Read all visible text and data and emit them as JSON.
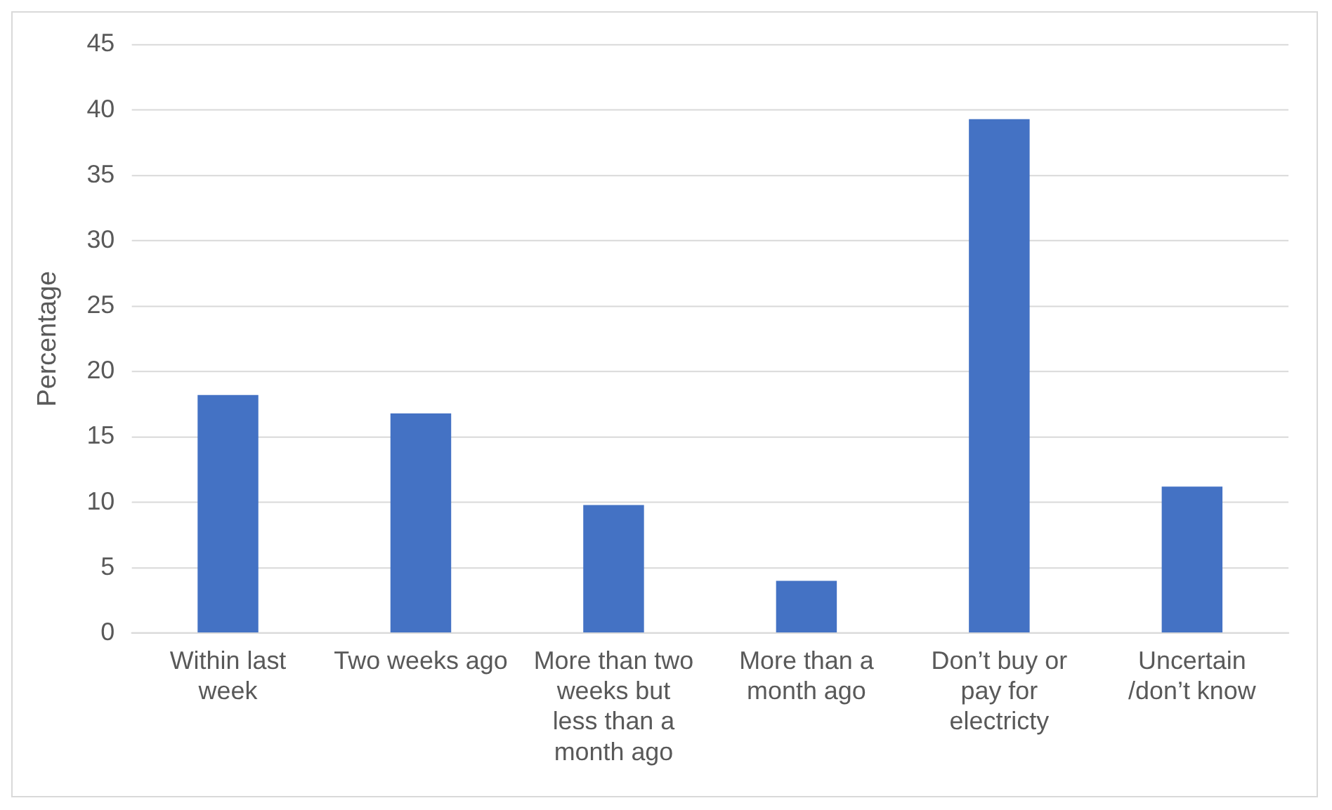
{
  "chart_data": {
    "type": "bar",
    "ylabel": "Percentage",
    "categories": [
      "Within last week",
      "Two weeks ago",
      "More than two weeks but less than a month ago",
      "More than a month ago",
      "Don’t buy or pay for electricty",
      "Uncertain /don’t know"
    ],
    "values": [
      18.2,
      16.8,
      9.8,
      4.0,
      39.3,
      11.2
    ],
    "color": "#4472c4",
    "ylim": [
      0,
      45
    ],
    "yticks": [
      0,
      5,
      10,
      15,
      20,
      25,
      30,
      35,
      40,
      45
    ],
    "grid": "y",
    "legend": false
  }
}
